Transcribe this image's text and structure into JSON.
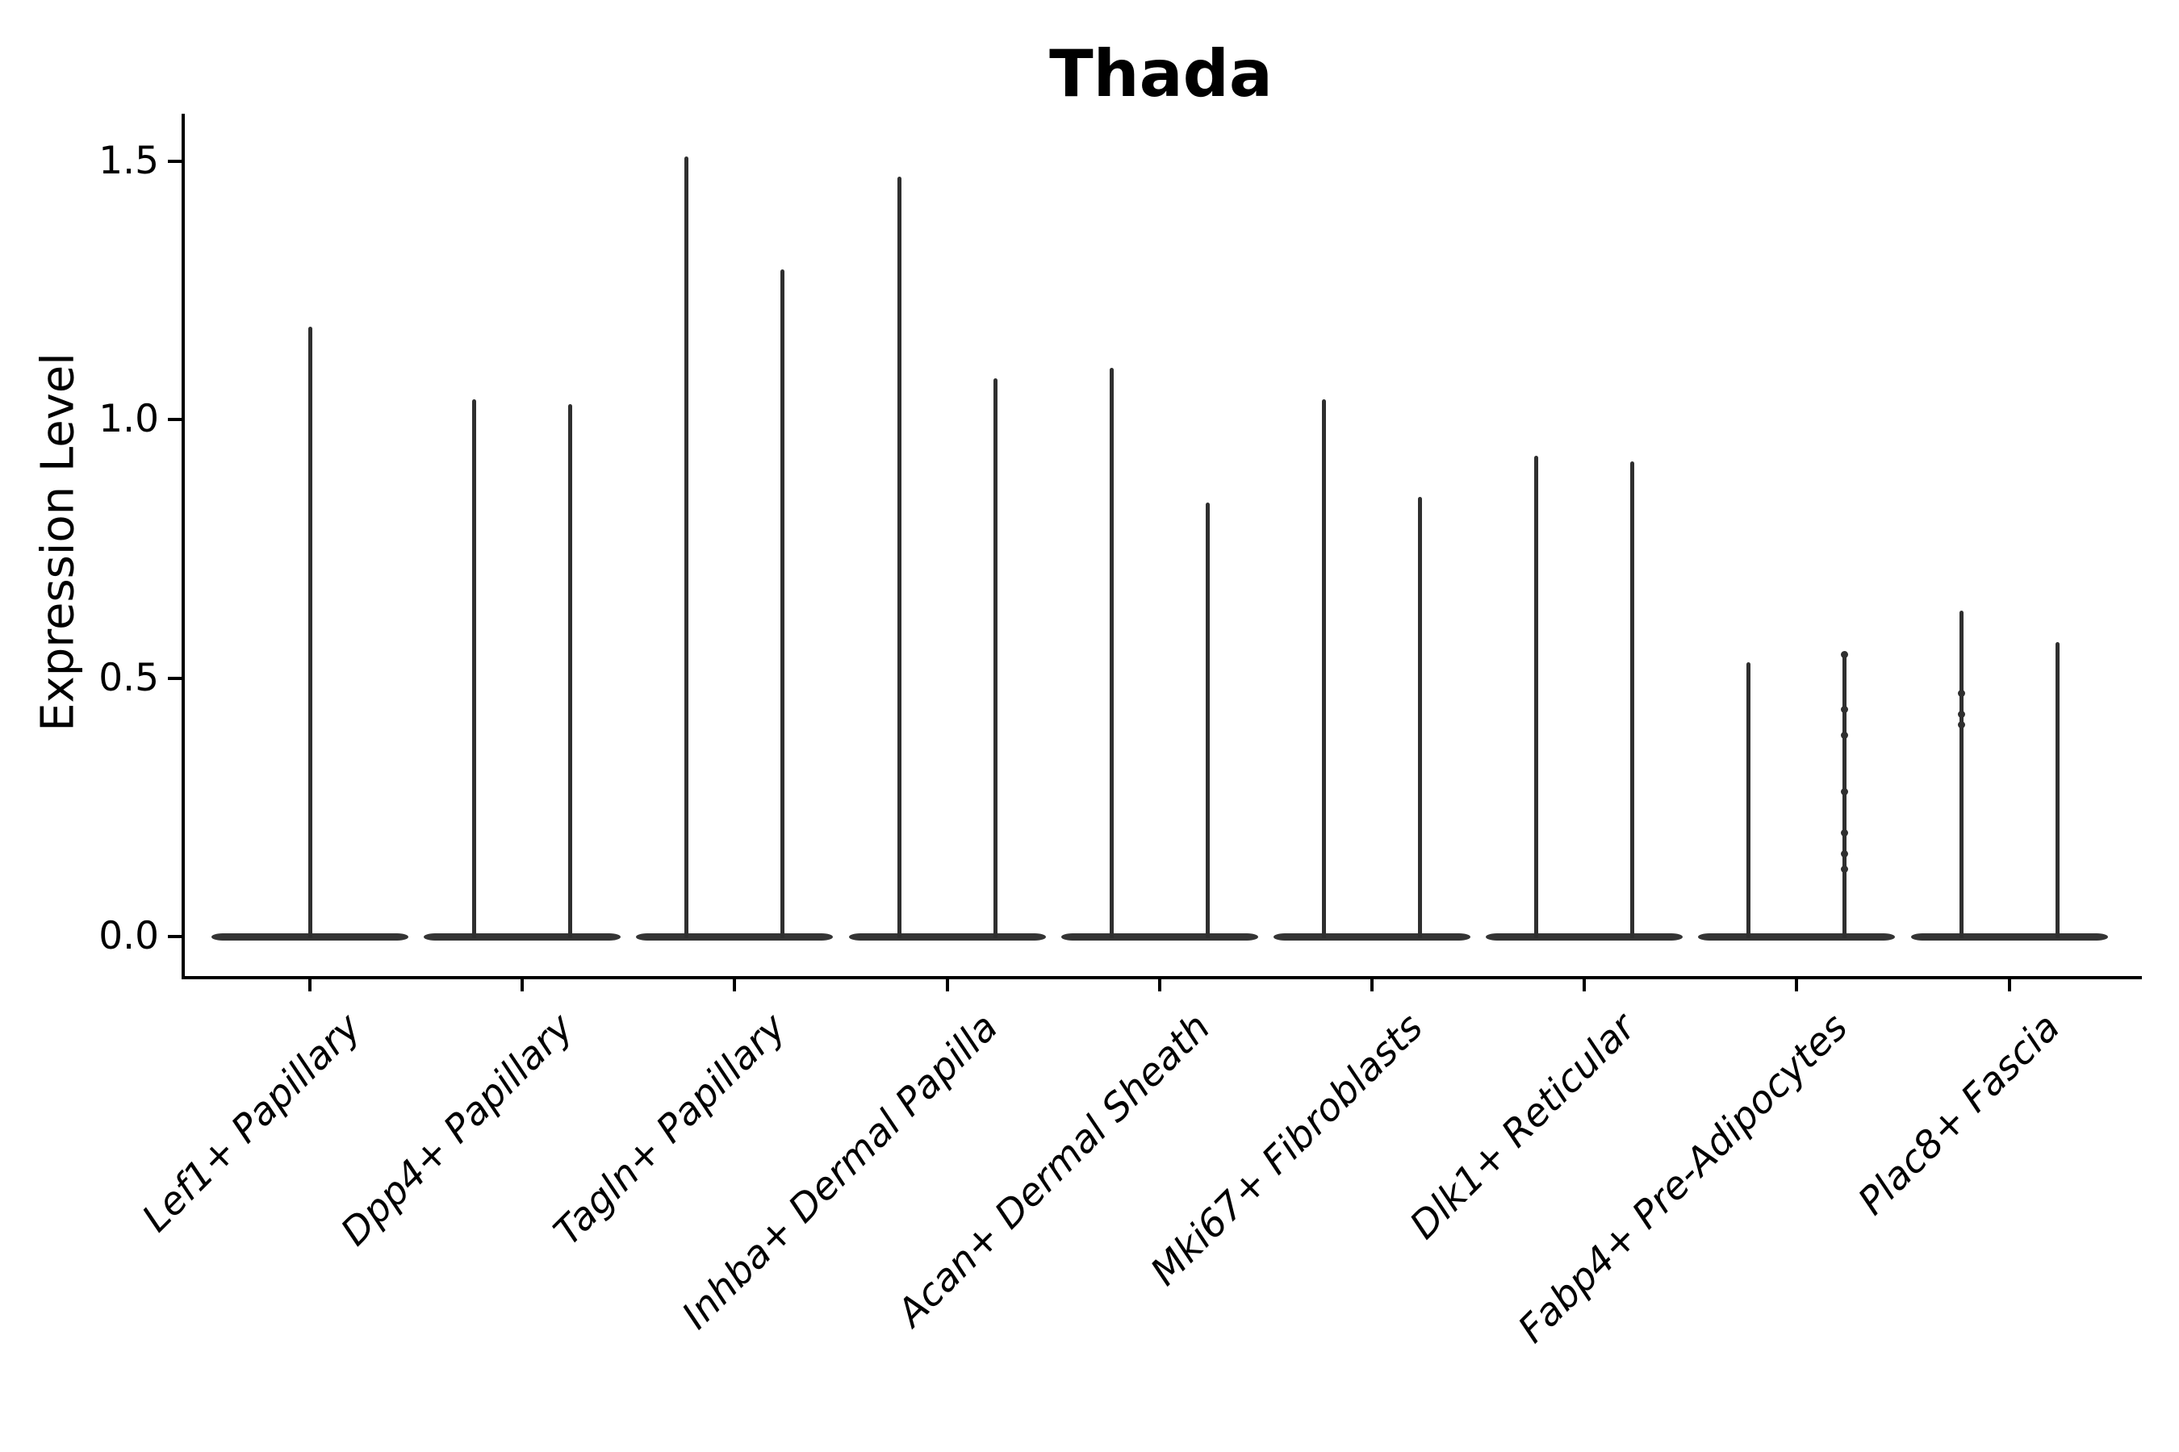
{
  "title": "Thada",
  "y_axis": {
    "label": "Expression Level",
    "ticks": [
      {
        "value": 1.5,
        "label": "1.5"
      },
      {
        "value": 1.0,
        "label": "1.0"
      },
      {
        "value": 0.5,
        "label": "0.5"
      },
      {
        "value": 0.0,
        "label": "0.0"
      }
    ]
  },
  "x_axis": {
    "categories": [
      "Lef1+ Papillary",
      "Dpp4+ Papillary",
      "Tagln+ Papillary",
      "Inhba+ Dermal Papilla",
      "Acan+ Dermal Sheath",
      "Mki67+ Fibroblasts",
      "Dlk1+ Reticular",
      "Fabp4+ Pre-Adipocytes",
      "Plac8+ Fascia"
    ]
  },
  "chart_data": {
    "type": "violin",
    "title": "Thada",
    "xlabel": "",
    "ylabel": "Expression Level",
    "ylim": [
      -0.08,
      1.59
    ],
    "grid": false,
    "legend": "none",
    "baseline_value": 0.0,
    "categories": [
      "Lef1+ Papillary",
      "Dpp4+ Papillary",
      "Tagln+ Papillary",
      "Inhba+ Dermal Papilla",
      "Acan+ Dermal Sheath",
      "Mki67+ Fibroblasts",
      "Dlk1+ Reticular",
      "Fabp4+ Pre-Adipocytes",
      "Plac8+ Fascia"
    ],
    "violins": [
      {
        "category": "Lef1+ Papillary",
        "spikes": [
          {
            "position": "center",
            "max": 1.18
          }
        ]
      },
      {
        "category": "Dpp4+ Papillary",
        "spikes": [
          {
            "position": "left",
            "max": 1.04
          },
          {
            "position": "right",
            "max": 1.03
          }
        ]
      },
      {
        "category": "Tagln+ Papillary",
        "spikes": [
          {
            "position": "left",
            "max": 1.51
          },
          {
            "position": "right",
            "max": 1.29
          }
        ]
      },
      {
        "category": "Inhba+ Dermal Papilla",
        "spikes": [
          {
            "position": "left",
            "max": 1.47
          },
          {
            "position": "right",
            "max": 1.08
          }
        ]
      },
      {
        "category": "Acan+ Dermal Sheath",
        "spikes": [
          {
            "position": "left",
            "max": 1.1
          },
          {
            "position": "right",
            "max": 0.84
          }
        ]
      },
      {
        "category": "Mki67+ Fibroblasts",
        "spikes": [
          {
            "position": "left",
            "max": 1.04
          },
          {
            "position": "right",
            "max": 0.85
          }
        ]
      },
      {
        "category": "Dlk1+ Reticular",
        "spikes": [
          {
            "position": "left",
            "max": 0.93
          },
          {
            "position": "right",
            "max": 0.92
          }
        ]
      },
      {
        "category": "Fabp4+ Pre-Adipocytes",
        "spikes": [
          {
            "position": "left",
            "max": 0.53
          },
          {
            "position": "right",
            "max": 0.55,
            "dots": [
              0.545,
              0.44,
              0.39,
              0.28,
              0.2,
              0.16,
              0.13
            ]
          }
        ]
      },
      {
        "category": "Plac8+ Fascia",
        "spikes": [
          {
            "position": "left",
            "max": 0.63,
            "dots": [
              0.47,
              0.43,
              0.41
            ]
          },
          {
            "position": "right",
            "max": 0.57
          }
        ]
      }
    ]
  },
  "colors": {
    "violin": "#333333",
    "axis": "#000000",
    "text": "#000000",
    "background": "#ffffff"
  }
}
